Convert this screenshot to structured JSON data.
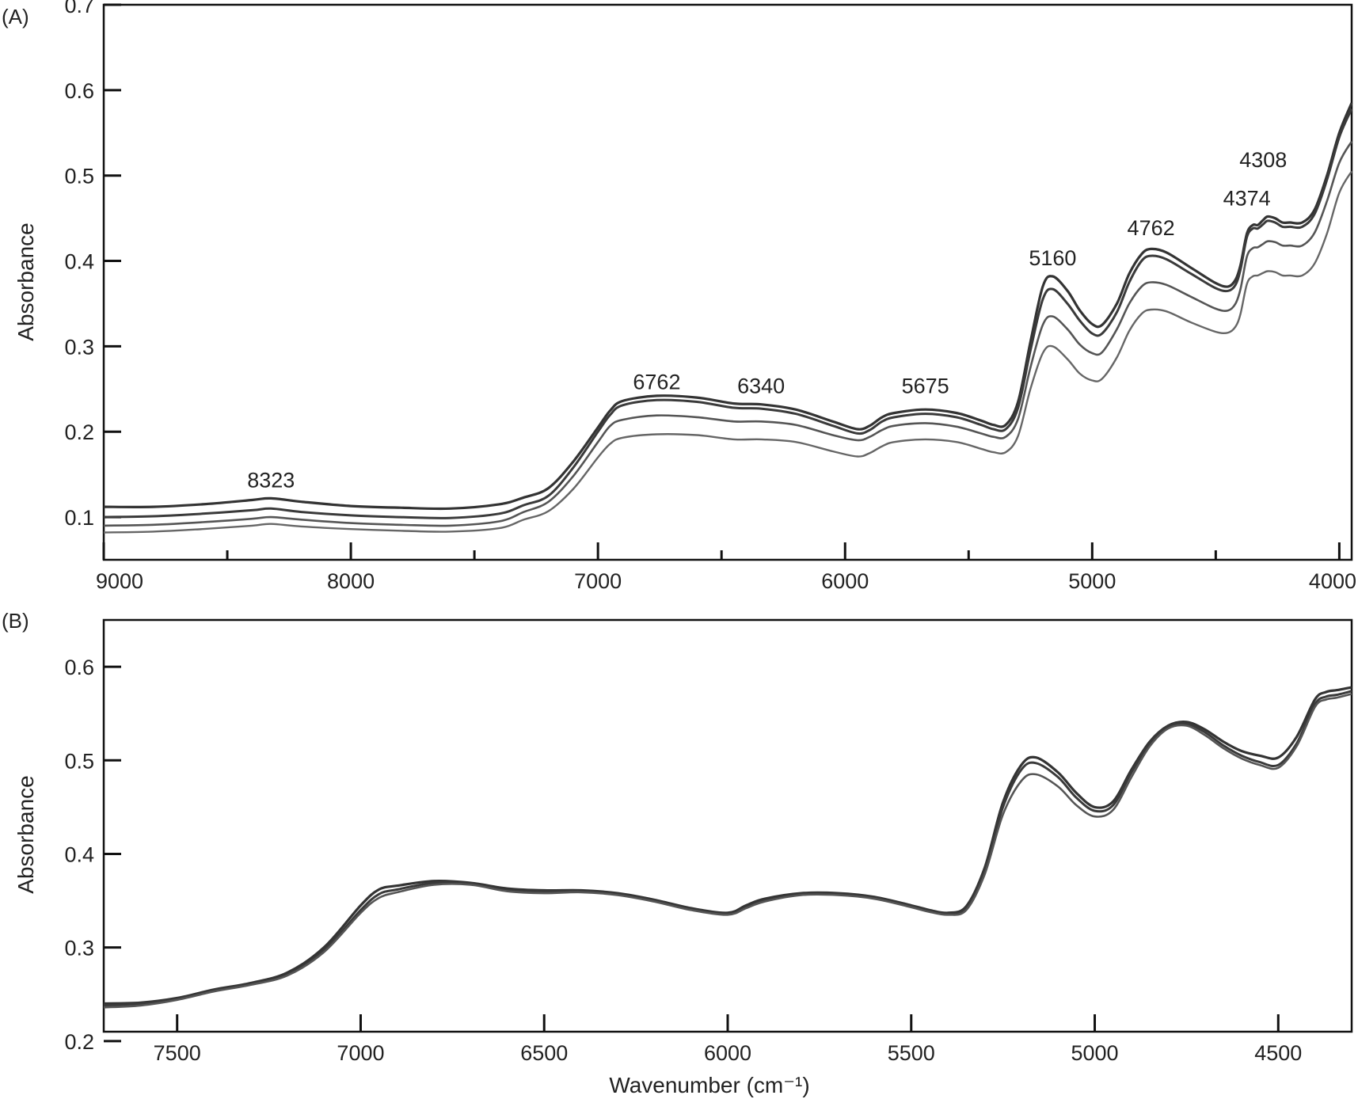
{
  "chart_data": [
    {
      "type": "line",
      "panel_label": "(A)",
      "title": "",
      "xlabel": "",
      "ylabel": "Absorbance",
      "xlim": [
        9000,
        3950
      ],
      "ylim": [
        0.05,
        0.7
      ],
      "x_reversed": true,
      "x_ticks": [
        9000,
        8000,
        7000,
        6000,
        5000,
        4000
      ],
      "y_ticks": [
        0.1,
        0.2,
        0.3,
        0.4,
        0.5,
        0.6,
        0.7
      ],
      "grid": false,
      "legend": "none",
      "annotations": [
        {
          "text": "8323",
          "x": 8323,
          "y": 0.135
        },
        {
          "text": "6762",
          "x": 6762,
          "y": 0.25
        },
        {
          "text": "6340",
          "x": 6340,
          "y": 0.245
        },
        {
          "text": "5675",
          "x": 5675,
          "y": 0.245
        },
        {
          "text": "5160",
          "x": 5160,
          "y": 0.395
        },
        {
          "text": "4762",
          "x": 4762,
          "y": 0.43
        },
        {
          "text": "4374",
          "x": 4374,
          "y": 0.465
        },
        {
          "text": "4308",
          "x": 4308,
          "y": 0.51
        }
      ],
      "x": [
        9000,
        8800,
        8600,
        8400,
        8323,
        8200,
        8000,
        7800,
        7600,
        7400,
        7300,
        7200,
        7100,
        7000,
        6950,
        6900,
        6762,
        6600,
        6450,
        6340,
        6200,
        6050,
        5950,
        5900,
        5850,
        5800,
        5675,
        5550,
        5450,
        5400,
        5350,
        5300,
        5250,
        5200,
        5160,
        5100,
        5050,
        5000,
        4960,
        4900,
        4850,
        4800,
        4762,
        4700,
        4600,
        4500,
        4450,
        4420,
        4400,
        4374,
        4350,
        4330,
        4308,
        4290,
        4260,
        4230,
        4200,
        4150,
        4100,
        4050,
        4000,
        3950
      ],
      "series": [
        {
          "values": [
            0.112,
            0.112,
            0.115,
            0.12,
            0.122,
            0.118,
            0.113,
            0.111,
            0.11,
            0.115,
            0.123,
            0.134,
            0.165,
            0.205,
            0.225,
            0.236,
            0.242,
            0.24,
            0.233,
            0.232,
            0.226,
            0.212,
            0.203,
            0.207,
            0.217,
            0.222,
            0.226,
            0.222,
            0.213,
            0.208,
            0.208,
            0.235,
            0.305,
            0.37,
            0.382,
            0.365,
            0.342,
            0.326,
            0.325,
            0.35,
            0.385,
            0.408,
            0.414,
            0.41,
            0.392,
            0.374,
            0.37,
            0.378,
            0.395,
            0.432,
            0.442,
            0.442,
            0.448,
            0.452,
            0.45,
            0.445,
            0.445,
            0.445,
            0.46,
            0.5,
            0.55,
            0.585
          ]
        },
        {
          "values": [
            0.1,
            0.101,
            0.104,
            0.108,
            0.11,
            0.106,
            0.102,
            0.1,
            0.099,
            0.104,
            0.114,
            0.125,
            0.158,
            0.2,
            0.22,
            0.231,
            0.237,
            0.235,
            0.228,
            0.227,
            0.221,
            0.207,
            0.198,
            0.202,
            0.212,
            0.217,
            0.221,
            0.217,
            0.208,
            0.203,
            0.203,
            0.228,
            0.295,
            0.355,
            0.367,
            0.35,
            0.33,
            0.315,
            0.315,
            0.34,
            0.375,
            0.4,
            0.406,
            0.402,
            0.385,
            0.368,
            0.365,
            0.372,
            0.39,
            0.428,
            0.438,
            0.438,
            0.443,
            0.447,
            0.445,
            0.44,
            0.44,
            0.44,
            0.455,
            0.495,
            0.545,
            0.578
          ]
        },
        {
          "values": [
            0.09,
            0.091,
            0.094,
            0.098,
            0.1,
            0.097,
            0.093,
            0.091,
            0.09,
            0.095,
            0.106,
            0.118,
            0.148,
            0.188,
            0.207,
            0.214,
            0.219,
            0.217,
            0.212,
            0.212,
            0.208,
            0.196,
            0.19,
            0.194,
            0.202,
            0.207,
            0.21,
            0.206,
            0.198,
            0.194,
            0.194,
            0.215,
            0.275,
            0.325,
            0.335,
            0.32,
            0.302,
            0.292,
            0.293,
            0.32,
            0.35,
            0.37,
            0.375,
            0.372,
            0.358,
            0.344,
            0.342,
            0.35,
            0.367,
            0.405,
            0.415,
            0.416,
            0.42,
            0.423,
            0.422,
            0.418,
            0.418,
            0.418,
            0.433,
            0.47,
            0.515,
            0.54
          ]
        },
        {
          "values": [
            0.082,
            0.083,
            0.086,
            0.09,
            0.092,
            0.089,
            0.086,
            0.084,
            0.083,
            0.087,
            0.097,
            0.107,
            0.133,
            0.17,
            0.186,
            0.193,
            0.197,
            0.196,
            0.191,
            0.191,
            0.188,
            0.177,
            0.171,
            0.175,
            0.183,
            0.188,
            0.191,
            0.188,
            0.18,
            0.176,
            0.176,
            0.195,
            0.25,
            0.292,
            0.3,
            0.285,
            0.268,
            0.26,
            0.262,
            0.287,
            0.318,
            0.338,
            0.343,
            0.341,
            0.328,
            0.317,
            0.316,
            0.323,
            0.338,
            0.373,
            0.382,
            0.383,
            0.386,
            0.388,
            0.387,
            0.383,
            0.383,
            0.383,
            0.397,
            0.432,
            0.48,
            0.505
          ]
        }
      ]
    },
    {
      "type": "line",
      "panel_label": "(B)",
      "title": "",
      "xlabel": "Wavenumber (cm⁻¹)",
      "ylabel": "Absorbance",
      "xlim": [
        7700,
        4300
      ],
      "ylim": [
        0.21,
        0.65
      ],
      "x_reversed": true,
      "x_ticks": [
        7500,
        7000,
        6500,
        6000,
        5500,
        5000,
        4500
      ],
      "y_ticks": [
        0.2,
        0.3,
        0.4,
        0.5,
        0.6
      ],
      "grid": false,
      "legend": "none",
      "x": [
        7700,
        7600,
        7500,
        7400,
        7300,
        7200,
        7100,
        7000,
        6950,
        6900,
        6800,
        6700,
        6600,
        6500,
        6400,
        6300,
        6200,
        6100,
        6000,
        5950,
        5900,
        5800,
        5700,
        5600,
        5500,
        5450,
        5400,
        5350,
        5300,
        5250,
        5200,
        5160,
        5100,
        5050,
        5000,
        4950,
        4900,
        4850,
        4800,
        4750,
        4700,
        4650,
        4600,
        4550,
        4500,
        4450,
        4400,
        4370,
        4340,
        4300
      ],
      "series": [
        {
          "values": [
            0.24,
            0.241,
            0.246,
            0.255,
            0.262,
            0.273,
            0.3,
            0.345,
            0.362,
            0.366,
            0.371,
            0.369,
            0.363,
            0.361,
            0.361,
            0.358,
            0.351,
            0.342,
            0.337,
            0.345,
            0.352,
            0.358,
            0.358,
            0.354,
            0.345,
            0.34,
            0.337,
            0.344,
            0.385,
            0.455,
            0.495,
            0.503,
            0.487,
            0.465,
            0.45,
            0.456,
            0.49,
            0.52,
            0.537,
            0.541,
            0.533,
            0.52,
            0.51,
            0.505,
            0.503,
            0.525,
            0.565,
            0.573,
            0.575,
            0.578
          ]
        },
        {
          "values": [
            0.238,
            0.24,
            0.245,
            0.254,
            0.261,
            0.271,
            0.297,
            0.34,
            0.357,
            0.362,
            0.369,
            0.368,
            0.361,
            0.36,
            0.36,
            0.357,
            0.35,
            0.341,
            0.336,
            0.343,
            0.35,
            0.357,
            0.357,
            0.353,
            0.344,
            0.339,
            0.336,
            0.342,
            0.382,
            0.45,
            0.49,
            0.497,
            0.482,
            0.46,
            0.446,
            0.452,
            0.487,
            0.518,
            0.536,
            0.539,
            0.53,
            0.516,
            0.505,
            0.498,
            0.495,
            0.518,
            0.56,
            0.568,
            0.57,
            0.574
          ]
        },
        {
          "values": [
            0.236,
            0.238,
            0.244,
            0.253,
            0.26,
            0.27,
            0.295,
            0.337,
            0.353,
            0.359,
            0.367,
            0.367,
            0.36,
            0.358,
            0.359,
            0.356,
            0.349,
            0.34,
            0.335,
            0.342,
            0.349,
            0.356,
            0.356,
            0.352,
            0.343,
            0.338,
            0.335,
            0.34,
            0.378,
            0.442,
            0.478,
            0.485,
            0.472,
            0.452,
            0.44,
            0.447,
            0.482,
            0.515,
            0.534,
            0.537,
            0.527,
            0.513,
            0.502,
            0.495,
            0.492,
            0.515,
            0.557,
            0.565,
            0.567,
            0.571
          ]
        }
      ]
    }
  ]
}
